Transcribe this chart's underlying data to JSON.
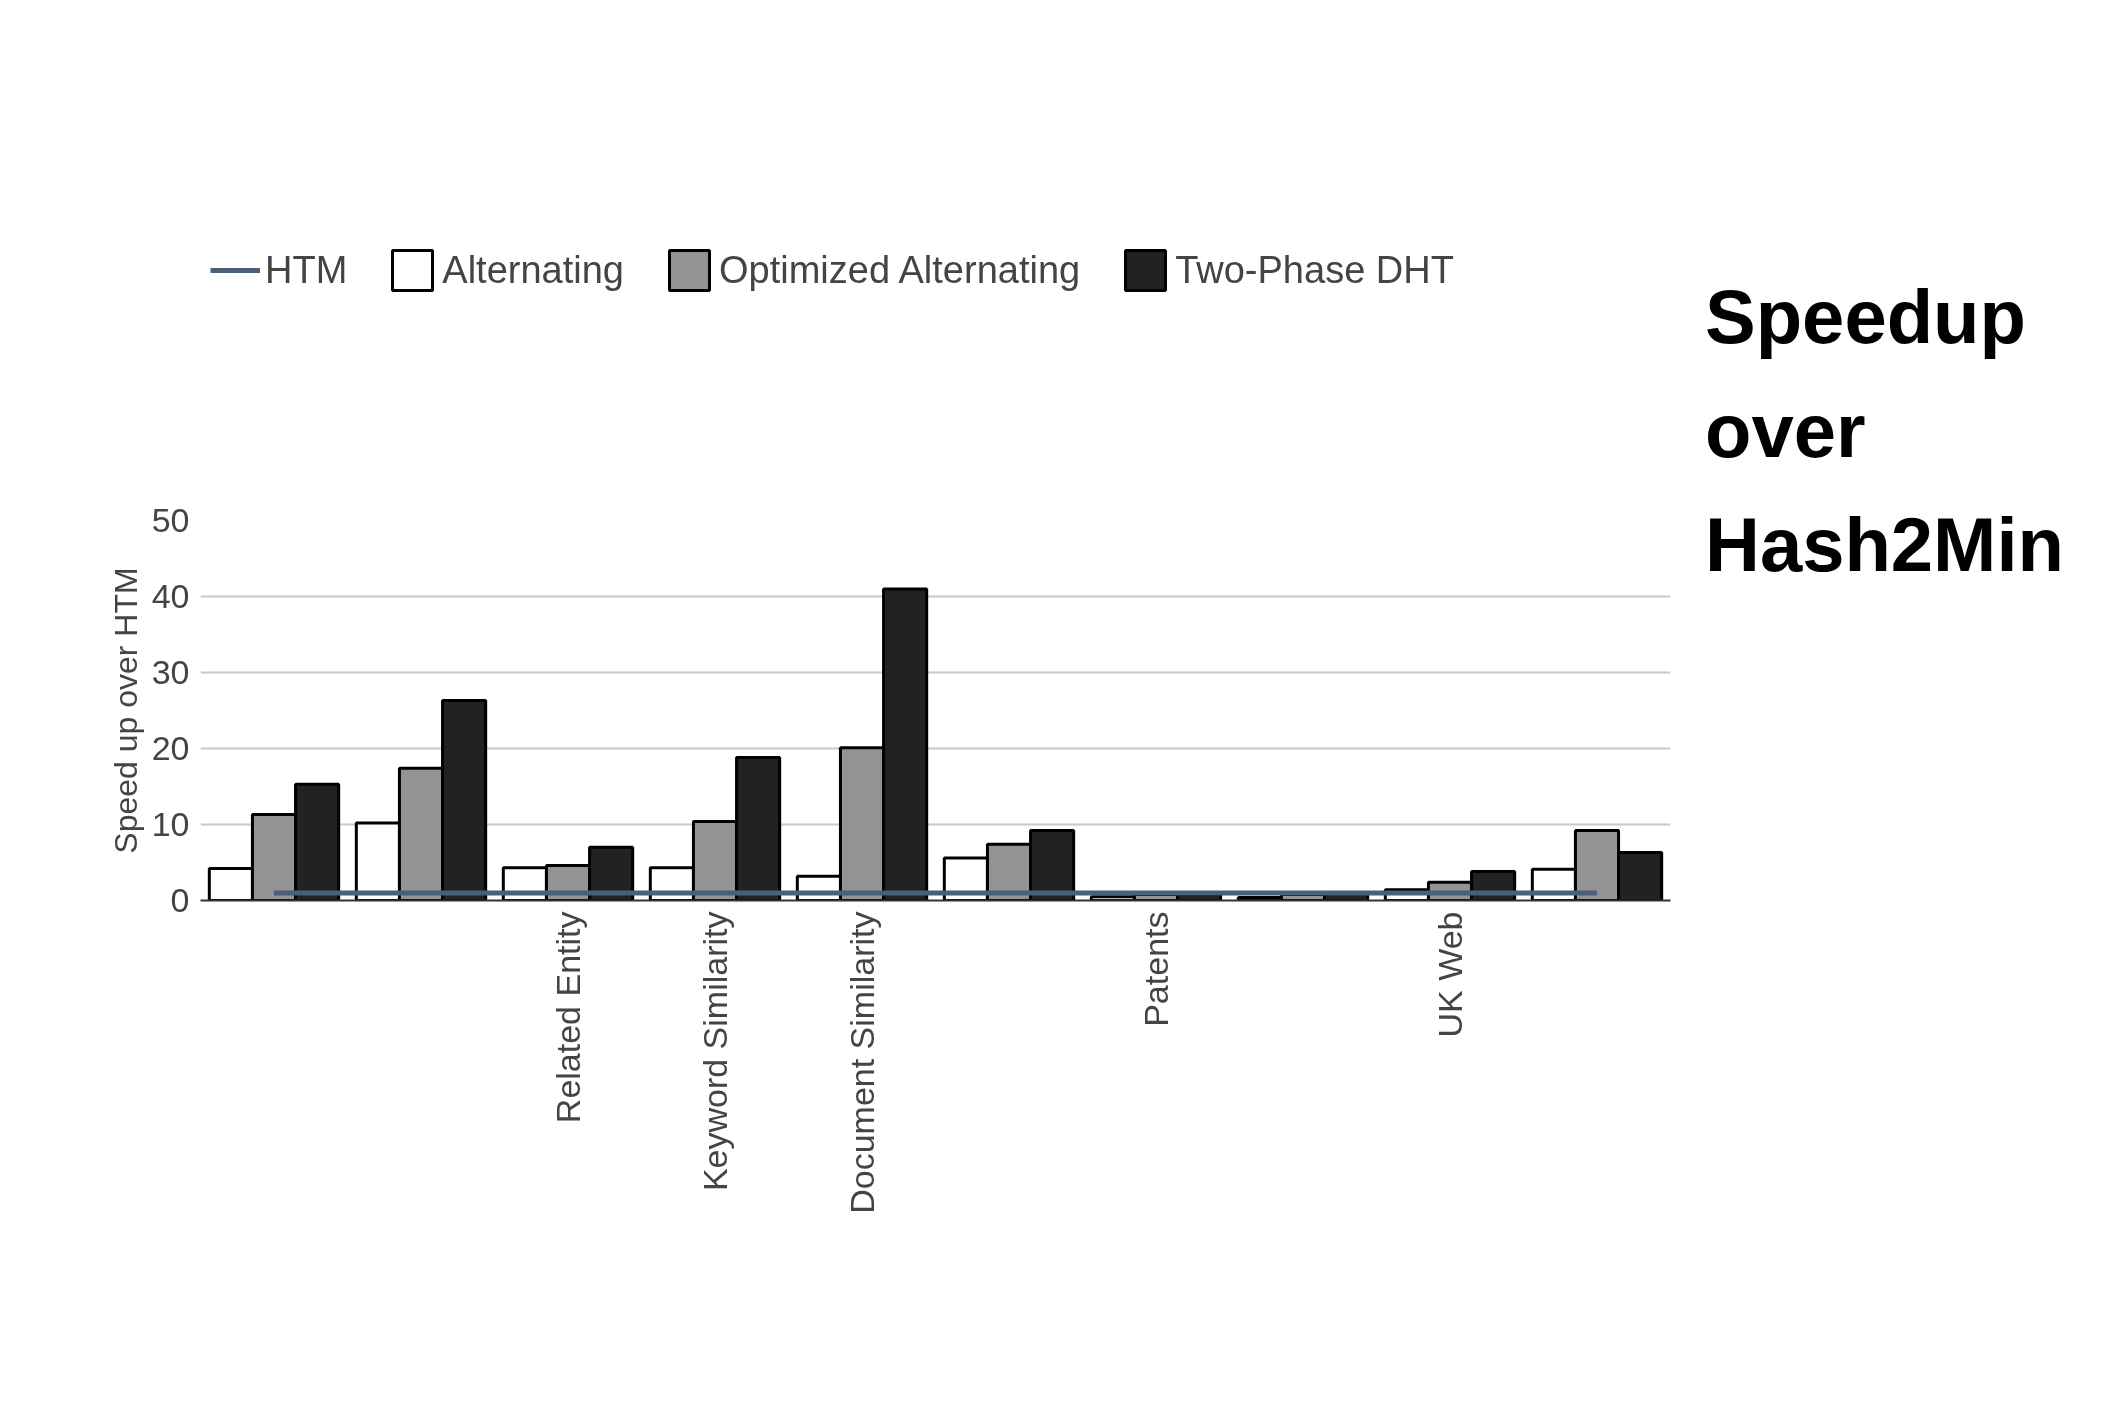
{
  "chart_data": {
    "type": "bar",
    "title": "Speedup over Hash2Min",
    "ylabel": "Speed up over HTM",
    "categories": [
      null,
      null,
      "Related Entity",
      "Keyword Similarity",
      "Document Similarity",
      null,
      "Patents",
      null,
      "UK Web",
      null
    ],
    "series": [
      {
        "name": "HTM",
        "type": "line",
        "color": "#4a6078",
        "values": [
          1,
          1,
          1,
          1,
          1,
          1,
          1,
          1,
          1,
          1
        ]
      },
      {
        "name": "Alternating",
        "color": "#ffffff",
        "values": [
          4.2,
          10.2,
          4.3,
          4.3,
          3.2,
          5.6,
          0.5,
          0.4,
          1.4,
          4.1
        ]
      },
      {
        "name": "Optimized Alternating",
        "color": "#939393",
        "values": [
          11.3,
          17.4,
          4.6,
          10.4,
          20.1,
          7.4,
          0.8,
          0.8,
          2.4,
          9.2
        ]
      },
      {
        "name": "Two-Phase DHT",
        "color": "#222222",
        "values": [
          15.3,
          26.3,
          7.0,
          18.8,
          41.0,
          9.2,
          0.8,
          0.9,
          3.8,
          6.3
        ]
      }
    ],
    "ylim": [
      0,
      50
    ],
    "yticks": [
      0,
      10,
      20,
      30,
      40,
      50
    ],
    "grid": "y",
    "legend": "top",
    "marker": "none",
    "line_style": "solid"
  }
}
